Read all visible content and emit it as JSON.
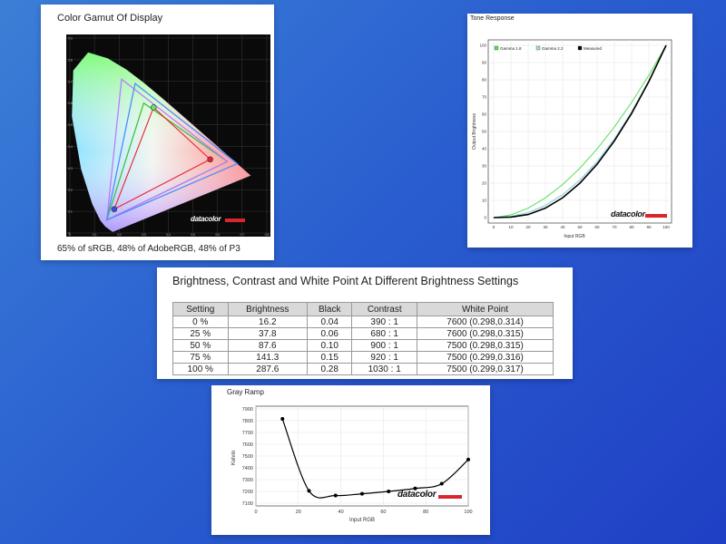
{
  "gamut": {
    "title": "Color Gamut Of Display",
    "caption": "65% of sRGB, 48% of AdobeRGB, 48% of P3",
    "x_ticks": [
      "0",
      "0.1",
      "0.2",
      "0.3",
      "0.4",
      "0.5",
      "0.6",
      "0.7",
      "0.8"
    ],
    "y_ticks": [
      "0",
      "0.1",
      "0.2",
      "0.3",
      "0.4",
      "0.5",
      "0.6",
      "0.7",
      "0.8",
      "0.9"
    ],
    "logo": "datacolor",
    "colors": {
      "srgb": "#3ec43e",
      "adobe": "#b97cff",
      "p3": "#4d8cff",
      "measured": "#e8232c"
    }
  },
  "tone": {
    "title": "Tone Response",
    "legend": [
      "Gamma 1.8",
      "Gamma 2.2",
      "Measured"
    ],
    "xlabel": "Input RGB",
    "ylabel": "Output Brightness",
    "ticks": [
      "0",
      "10",
      "20",
      "30",
      "40",
      "50",
      "60",
      "70",
      "80",
      "90",
      "100"
    ],
    "logo": "datacolor",
    "colors": {
      "gamma18": "#55e055",
      "gamma22": "#9fd8e0",
      "measured": "#000000"
    }
  },
  "table": {
    "title": "Brightness, Contrast and White Point At Different Brightness Settings",
    "headers": [
      "Setting",
      "Brightness",
      "Black",
      "Contrast",
      "White Point"
    ],
    "rows": [
      [
        "0 %",
        "16.2",
        "0.04",
        "390 : 1",
        "7600 (0.298,0.314)"
      ],
      [
        "25 %",
        "37.8",
        "0.06",
        "680 : 1",
        "7600 (0.298,0.315)"
      ],
      [
        "50 %",
        "87.6",
        "0.10",
        "900 : 1",
        "7500 (0.298,0.315)"
      ],
      [
        "75 %",
        "141.3",
        "0.15",
        "920 : 1",
        "7500 (0.299,0.316)"
      ],
      [
        "100 %",
        "287.6",
        "0.28",
        "1030 : 1",
        "7500 (0.299,0.317)"
      ]
    ]
  },
  "ramp": {
    "title": "Gray Ramp",
    "xlabel": "Input RGB",
    "ylabel": "Kelvin",
    "x_ticks": [
      "0",
      "20",
      "40",
      "60",
      "80",
      "100"
    ],
    "y_ticks": [
      "7100",
      "7200",
      "7300",
      "7400",
      "7500",
      "7600",
      "7700",
      "7800",
      "7900"
    ],
    "logo": "datacolor"
  },
  "chart_data": [
    {
      "type": "scatter",
      "title": "Color Gamut Of Display",
      "xlim": [
        0,
        0.8
      ],
      "ylim": [
        0,
        0.9
      ],
      "series": [
        {
          "name": "sRGB",
          "points": [
            [
              0.64,
              0.33
            ],
            [
              0.3,
              0.6
            ],
            [
              0.15,
              0.06
            ]
          ]
        },
        {
          "name": "AdobeRGB",
          "points": [
            [
              0.64,
              0.33
            ],
            [
              0.21,
              0.71
            ],
            [
              0.15,
              0.06
            ]
          ]
        },
        {
          "name": "P3",
          "points": [
            [
              0.68,
              0.32
            ],
            [
              0.265,
              0.69
            ],
            [
              0.15,
              0.06
            ]
          ]
        },
        {
          "name": "Measured",
          "points": [
            [
              0.57,
              0.34
            ],
            [
              0.34,
              0.58
            ],
            [
              0.18,
              0.11
            ]
          ]
        }
      ]
    },
    {
      "type": "line",
      "title": "Tone Response",
      "xlabel": "Input RGB",
      "ylabel": "Output Brightness",
      "xlim": [
        0,
        100
      ],
      "ylim": [
        0,
        100
      ],
      "x": [
        0,
        10,
        20,
        30,
        40,
        50,
        60,
        70,
        80,
        90,
        100
      ],
      "series": [
        {
          "name": "Gamma 1.8",
          "values": [
            0,
            1.6,
            5.5,
            11.5,
            19.2,
            28.7,
            39.9,
            52.6,
            66.9,
            82.7,
            100
          ]
        },
        {
          "name": "Gamma 2.2",
          "values": [
            0,
            0.6,
            2.9,
            7.1,
            13.3,
            21.8,
            32.5,
            45.6,
            61.2,
            79.3,
            100
          ]
        },
        {
          "name": "Measured",
          "values": [
            0,
            0.3,
            1.8,
            5.5,
            11.5,
            20,
            31,
            44.5,
            60.5,
            79,
            100
          ]
        }
      ]
    },
    {
      "type": "line",
      "title": "Gray Ramp",
      "xlabel": "Input RGB",
      "ylabel": "Kelvin",
      "xlim": [
        0,
        100
      ],
      "ylim": [
        7100,
        7900
      ],
      "x": [
        12.5,
        25,
        37.5,
        50,
        62.5,
        75,
        87.5,
        100
      ],
      "series": [
        {
          "values": [
            7815,
            7205,
            7165,
            7180,
            7200,
            7225,
            7265,
            7470
          ]
        }
      ]
    }
  ]
}
